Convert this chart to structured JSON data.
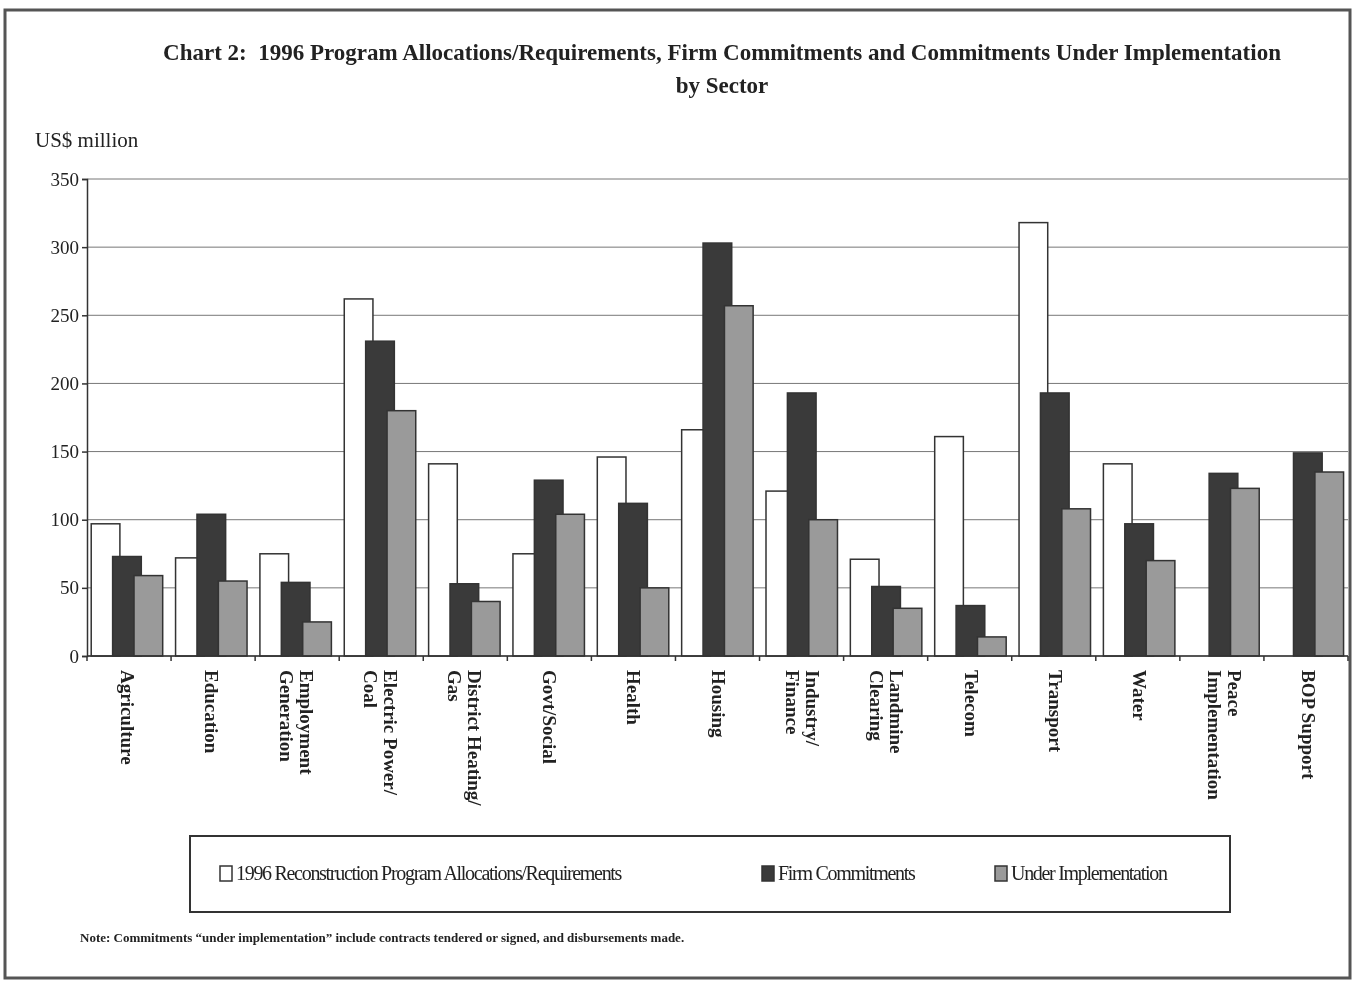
{
  "chart_data": {
    "type": "bar",
    "title": "Chart 2:  1996 Program Allocations/Requirements, Firm Commitments and Commitments Under Implementation by Sector",
    "ylabel": "US$ million",
    "categories": [
      "Agriculture",
      "Education",
      "Employment Generation",
      "Electric Power/Coal",
      "District Heating/Gas",
      "Govt/Social",
      "Health",
      "Housing",
      "Industry/Finance",
      "Landmine Clearing",
      "Telecom",
      "Transport",
      "Water",
      "Peace Implementation",
      "BOP Support"
    ],
    "series": [
      {
        "name": "1996 Reconstruction Program Allocations/Requirements",
        "color": "#ffffff",
        "values": [
          97,
          72,
          75,
          262,
          141,
          75,
          146,
          166,
          121,
          71,
          161,
          318,
          141,
          null,
          null
        ]
      },
      {
        "name": "Firm Commitments",
        "color": "#3a3a3a",
        "values": [
          73,
          104,
          54,
          231,
          53,
          129,
          112,
          303,
          193,
          51,
          37,
          193,
          97,
          134,
          149
        ]
      },
      {
        "name": "Under Implementation",
        "color": "#9a9a9a",
        "values": [
          59,
          55,
          25,
          180,
          40,
          104,
          50,
          257,
          100,
          35,
          14,
          108,
          70,
          123,
          135
        ]
      }
    ],
    "ylim": [
      0,
      350
    ],
    "yticks": [
      0,
      50,
      100,
      150,
      200,
      250,
      300,
      350
    ],
    "grid": "y",
    "legend": "bottom",
    "annotations": [
      "Note: Commitments “under implementation” include contracts tendered or signed, and disbursements made."
    ]
  }
}
